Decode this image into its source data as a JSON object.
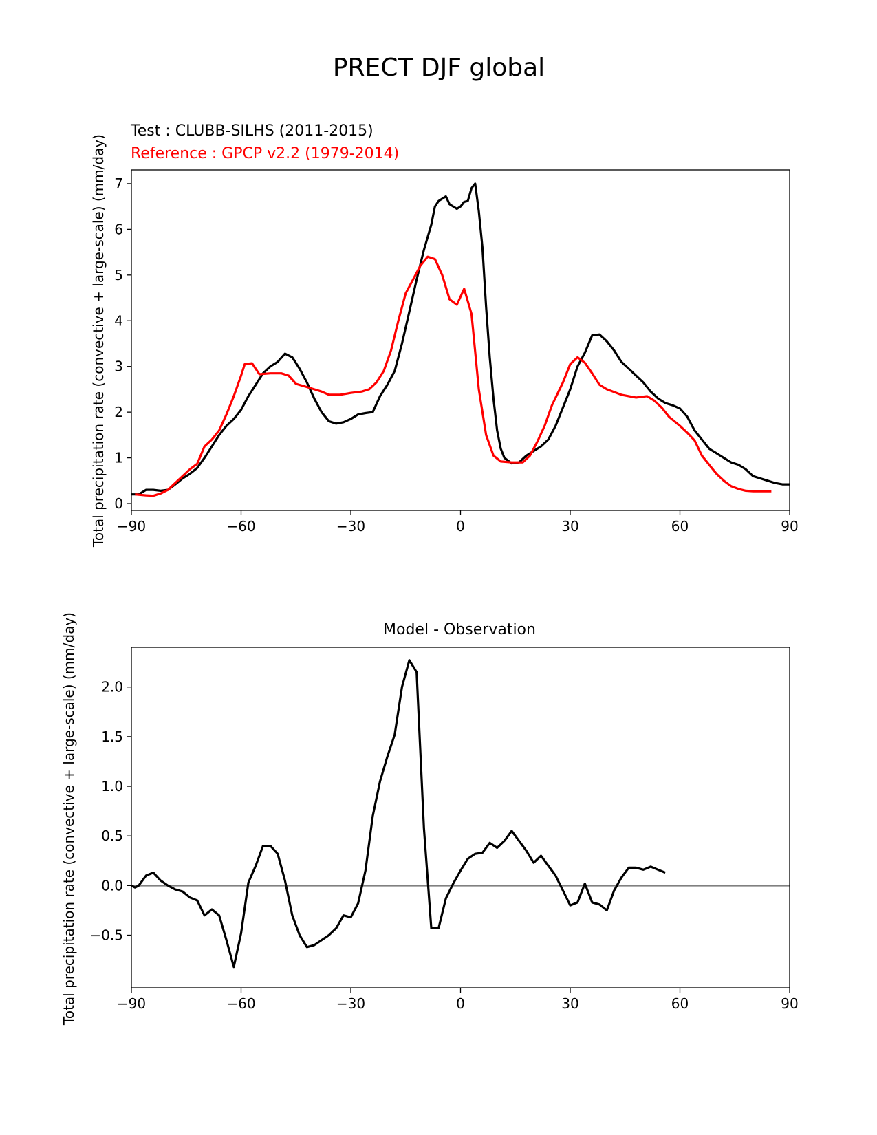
{
  "figure": {
    "title": "PRECT DJF global"
  },
  "chart_data": [
    {
      "type": "line",
      "test_label": "Test : CLUBB-SILHS (2011-2015)",
      "reference_label": "Reference : GPCP v2.2 (1979-2014)",
      "ylabel": "Total precipitation rate (convective + large-scale) (mm/day)",
      "xlabel": "",
      "xlim": [
        -90,
        90
      ],
      "ylim": [
        -0.15,
        7.3
      ],
      "xticks": [
        -90,
        -60,
        -30,
        0,
        30,
        60,
        90
      ],
      "xtick_labels": [
        "−90",
        "−60",
        "−30",
        "0",
        "30",
        "60",
        "90"
      ],
      "yticks": [
        0,
        1,
        2,
        3,
        4,
        5,
        6,
        7
      ],
      "ytick_labels": [
        "0",
        "1",
        "2",
        "3",
        "4",
        "5",
        "6",
        "7"
      ],
      "grid": false,
      "series": [
        {
          "color": "#000000",
          "points": [
            [
              -90,
              0.2
            ],
            [
              -88,
              0.2
            ],
            [
              -86,
              0.3
            ],
            [
              -84,
              0.3
            ],
            [
              -82,
              0.28
            ],
            [
              -80,
              0.3
            ],
            [
              -78,
              0.42
            ],
            [
              -76,
              0.55
            ],
            [
              -74,
              0.65
            ],
            [
              -72,
              0.78
            ],
            [
              -70,
              1.0
            ],
            [
              -68,
              1.25
            ],
            [
              -66,
              1.5
            ],
            [
              -64,
              1.7
            ],
            [
              -62,
              1.85
            ],
            [
              -60,
              2.05
            ],
            [
              -58,
              2.35
            ],
            [
              -56,
              2.6
            ],
            [
              -54,
              2.85
            ],
            [
              -52,
              3.0
            ],
            [
              -50,
              3.1
            ],
            [
              -48,
              3.28
            ],
            [
              -46,
              3.2
            ],
            [
              -44,
              2.95
            ],
            [
              -42,
              2.65
            ],
            [
              -40,
              2.3
            ],
            [
              -38,
              2.0
            ],
            [
              -36,
              1.8
            ],
            [
              -34,
              1.75
            ],
            [
              -32,
              1.78
            ],
            [
              -30,
              1.85
            ],
            [
              -28,
              1.95
            ],
            [
              -26,
              1.98
            ],
            [
              -24,
              2.0
            ],
            [
              -22,
              2.35
            ],
            [
              -20,
              2.6
            ],
            [
              -18,
              2.9
            ],
            [
              -16,
              3.5
            ],
            [
              -14,
              4.2
            ],
            [
              -12,
              4.9
            ],
            [
              -10,
              5.55
            ],
            [
              -8,
              6.1
            ],
            [
              -7,
              6.5
            ],
            [
              -6,
              6.62
            ],
            [
              -4,
              6.72
            ],
            [
              -3,
              6.55
            ],
            [
              -2,
              6.5
            ],
            [
              -1,
              6.45
            ],
            [
              0,
              6.5
            ],
            [
              1,
              6.6
            ],
            [
              2,
              6.62
            ],
            [
              3,
              6.9
            ],
            [
              4,
              7.0
            ],
            [
              5,
              6.4
            ],
            [
              6,
              5.6
            ],
            [
              7,
              4.3
            ],
            [
              8,
              3.2
            ],
            [
              9,
              2.3
            ],
            [
              10,
              1.6
            ],
            [
              11,
              1.2
            ],
            [
              12,
              1.0
            ],
            [
              14,
              0.88
            ],
            [
              16,
              0.9
            ],
            [
              18,
              1.05
            ],
            [
              20,
              1.15
            ],
            [
              22,
              1.25
            ],
            [
              24,
              1.4
            ],
            [
              26,
              1.7
            ],
            [
              28,
              2.1
            ],
            [
              30,
              2.5
            ],
            [
              32,
              3.0
            ],
            [
              34,
              3.3
            ],
            [
              36,
              3.68
            ],
            [
              38,
              3.7
            ],
            [
              40,
              3.55
            ],
            [
              42,
              3.35
            ],
            [
              44,
              3.1
            ],
            [
              46,
              2.95
            ],
            [
              48,
              2.8
            ],
            [
              50,
              2.65
            ],
            [
              52,
              2.45
            ],
            [
              54,
              2.3
            ],
            [
              56,
              2.2
            ],
            [
              58,
              2.15
            ],
            [
              60,
              2.08
            ],
            [
              62,
              1.9
            ],
            [
              64,
              1.6
            ],
            [
              66,
              1.4
            ],
            [
              68,
              1.2
            ],
            [
              70,
              1.1
            ],
            [
              72,
              1.0
            ],
            [
              74,
              0.9
            ],
            [
              76,
              0.85
            ],
            [
              78,
              0.75
            ],
            [
              80,
              0.6
            ],
            [
              82,
              0.55
            ],
            [
              84,
              0.5
            ],
            [
              86,
              0.45
            ],
            [
              88,
              0.42
            ],
            [
              90,
              0.42
            ]
          ]
        },
        {
          "color": "#ff0000",
          "points": [
            [
              -89,
              0.2
            ],
            [
              -86,
              0.18
            ],
            [
              -84,
              0.17
            ],
            [
              -82,
              0.22
            ],
            [
              -80,
              0.3
            ],
            [
              -78,
              0.45
            ],
            [
              -76,
              0.6
            ],
            [
              -74,
              0.75
            ],
            [
              -72,
              0.87
            ],
            [
              -70,
              1.25
            ],
            [
              -68,
              1.4
            ],
            [
              -66,
              1.6
            ],
            [
              -64,
              1.95
            ],
            [
              -62,
              2.35
            ],
            [
              -60,
              2.8
            ],
            [
              -59,
              3.05
            ],
            [
              -57,
              3.07
            ],
            [
              -55,
              2.83
            ],
            [
              -52,
              2.85
            ],
            [
              -49,
              2.85
            ],
            [
              -47,
              2.8
            ],
            [
              -45,
              2.62
            ],
            [
              -42,
              2.55
            ],
            [
              -40,
              2.5
            ],
            [
              -38,
              2.45
            ],
            [
              -36,
              2.38
            ],
            [
              -33,
              2.38
            ],
            [
              -30,
              2.42
            ],
            [
              -27,
              2.45
            ],
            [
              -25,
              2.5
            ],
            [
              -23,
              2.65
            ],
            [
              -21,
              2.9
            ],
            [
              -19,
              3.35
            ],
            [
              -17,
              4.0
            ],
            [
              -15,
              4.6
            ],
            [
              -13,
              4.9
            ],
            [
              -11,
              5.2
            ],
            [
              -9,
              5.4
            ],
            [
              -7,
              5.35
            ],
            [
              -5,
              5.0
            ],
            [
              -3,
              4.47
            ],
            [
              -1,
              4.35
            ],
            [
              1,
              4.7
            ],
            [
              3,
              4.15
            ],
            [
              5,
              2.5
            ],
            [
              7,
              1.5
            ],
            [
              9,
              1.05
            ],
            [
              11,
              0.92
            ],
            [
              14,
              0.9
            ],
            [
              17,
              0.9
            ],
            [
              19,
              1.05
            ],
            [
              21,
              1.35
            ],
            [
              23,
              1.7
            ],
            [
              25,
              2.15
            ],
            [
              28,
              2.65
            ],
            [
              30,
              3.05
            ],
            [
              32,
              3.2
            ],
            [
              34,
              3.08
            ],
            [
              36,
              2.85
            ],
            [
              38,
              2.6
            ],
            [
              40,
              2.5
            ],
            [
              44,
              2.38
            ],
            [
              46,
              2.35
            ],
            [
              48,
              2.32
            ],
            [
              51,
              2.35
            ],
            [
              53,
              2.25
            ],
            [
              55,
              2.1
            ],
            [
              57,
              1.9
            ],
            [
              60,
              1.7
            ],
            [
              62,
              1.55
            ],
            [
              64,
              1.38
            ],
            [
              66,
              1.05
            ],
            [
              68,
              0.85
            ],
            [
              70,
              0.65
            ],
            [
              72,
              0.5
            ],
            [
              74,
              0.38
            ],
            [
              76,
              0.32
            ],
            [
              78,
              0.28
            ],
            [
              80,
              0.27
            ],
            [
              82,
              0.27
            ],
            [
              85,
              0.27
            ]
          ]
        }
      ]
    },
    {
      "type": "line",
      "title": "Model - Observation",
      "ylabel": "Total precipitation rate (convective + large-scale) (mm/day)",
      "xlabel": "",
      "xlim": [
        -90,
        90
      ],
      "ylim": [
        -1.03,
        2.4
      ],
      "xticks": [
        -90,
        -60,
        -30,
        0,
        30,
        60,
        90
      ],
      "xtick_labels": [
        "−90",
        "−60",
        "−30",
        "0",
        "30",
        "60",
        "90"
      ],
      "yticks": [
        -0.5,
        0.0,
        0.5,
        1.0,
        1.5,
        2.0
      ],
      "ytick_labels": [
        "−0.5",
        "0.0",
        "0.5",
        "1.0",
        "1.5",
        "2.0"
      ],
      "grid": false,
      "zero_line": {
        "y": 0,
        "color": "#808080"
      },
      "series": [
        {
          "color": "#000000",
          "points": [
            [
              -90,
              0.0
            ],
            [
              -89,
              -0.02
            ],
            [
              -88,
              0.0
            ],
            [
              -86,
              0.1
            ],
            [
              -84,
              0.13
            ],
            [
              -82,
              0.05
            ],
            [
              -80,
              0.0
            ],
            [
              -78,
              -0.04
            ],
            [
              -76,
              -0.06
            ],
            [
              -74,
              -0.12
            ],
            [
              -72,
              -0.15
            ],
            [
              -70,
              -0.3
            ],
            [
              -68,
              -0.24
            ],
            [
              -66,
              -0.3
            ],
            [
              -64,
              -0.55
            ],
            [
              -62,
              -0.82
            ],
            [
              -60,
              -0.48
            ],
            [
              -58,
              0.03
            ],
            [
              -56,
              0.2
            ],
            [
              -54,
              0.4
            ],
            [
              -52,
              0.4
            ],
            [
              -50,
              0.32
            ],
            [
              -48,
              0.05
            ],
            [
              -46,
              -0.3
            ],
            [
              -44,
              -0.5
            ],
            [
              -42,
              -0.62
            ],
            [
              -40,
              -0.6
            ],
            [
              -38,
              -0.55
            ],
            [
              -36,
              -0.5
            ],
            [
              -34,
              -0.43
            ],
            [
              -32,
              -0.3
            ],
            [
              -30,
              -0.32
            ],
            [
              -28,
              -0.18
            ],
            [
              -26,
              0.15
            ],
            [
              -24,
              0.7
            ],
            [
              -22,
              1.05
            ],
            [
              -20,
              1.3
            ],
            [
              -18,
              1.52
            ],
            [
              -16,
              2.0
            ],
            [
              -14,
              2.27
            ],
            [
              -12,
              2.15
            ],
            [
              -10,
              0.58
            ],
            [
              -8,
              -0.43
            ],
            [
              -6,
              -0.43
            ],
            [
              -4,
              -0.13
            ],
            [
              -2,
              0.02
            ],
            [
              0,
              0.15
            ],
            [
              2,
              0.27
            ],
            [
              4,
              0.32
            ],
            [
              6,
              0.33
            ],
            [
              8,
              0.43
            ],
            [
              10,
              0.38
            ],
            [
              12,
              0.45
            ],
            [
              14,
              0.55
            ],
            [
              16,
              0.45
            ],
            [
              18,
              0.35
            ],
            [
              20,
              0.23
            ],
            [
              22,
              0.3
            ],
            [
              24,
              0.2
            ],
            [
              26,
              0.1
            ],
            [
              28,
              -0.05
            ],
            [
              30,
              -0.2
            ],
            [
              32,
              -0.17
            ],
            [
              34,
              0.02
            ],
            [
              36,
              -0.17
            ],
            [
              38,
              -0.19
            ],
            [
              40,
              -0.25
            ],
            [
              42,
              -0.05
            ],
            [
              44,
              0.08
            ],
            [
              46,
              0.18
            ],
            [
              48,
              0.18
            ],
            [
              50,
              0.16
            ],
            [
              52,
              0.19
            ],
            [
              54,
              0.16
            ],
            [
              56,
              0.13
            ]
          ]
        }
      ]
    }
  ]
}
